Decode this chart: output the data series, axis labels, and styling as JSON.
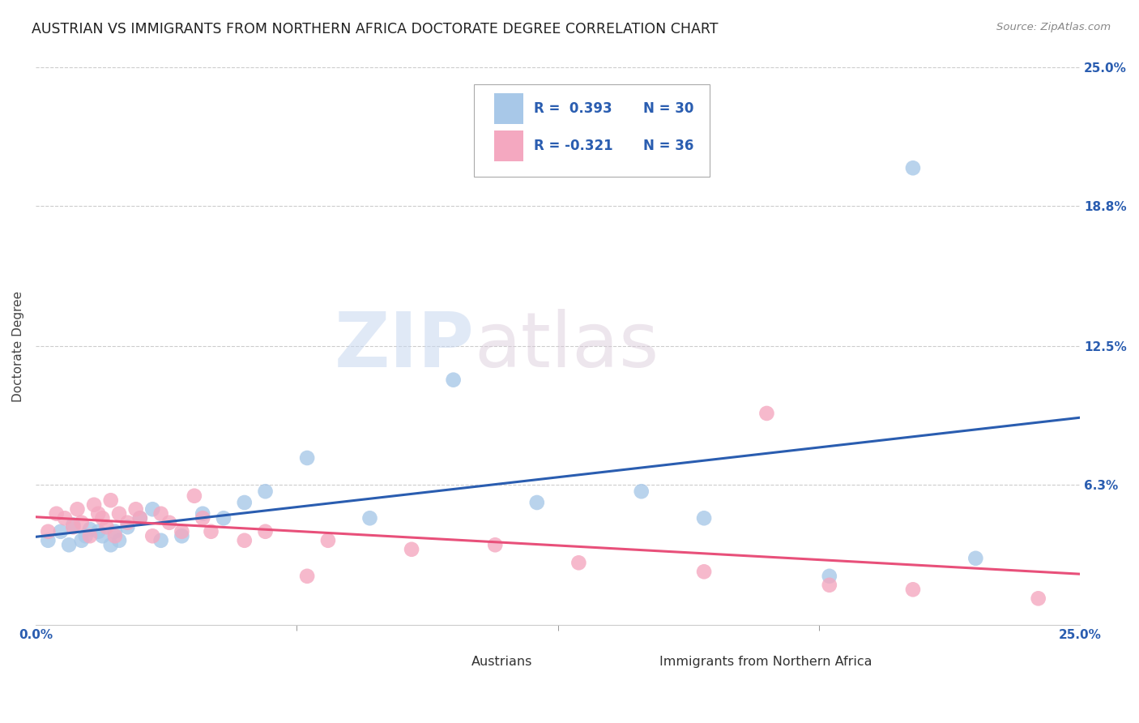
{
  "title": "AUSTRIAN VS IMMIGRANTS FROM NORTHERN AFRICA DOCTORATE DEGREE CORRELATION CHART",
  "source": "Source: ZipAtlas.com",
  "ylabel": "Doctorate Degree",
  "xlim": [
    0.0,
    0.25
  ],
  "ylim": [
    0.0,
    0.25
  ],
  "ytick_labels": [
    "6.3%",
    "12.5%",
    "18.8%",
    "25.0%"
  ],
  "ytick_vals": [
    0.063,
    0.125,
    0.188,
    0.25
  ],
  "blue_color": "#a8c8e8",
  "pink_color": "#f4a8c0",
  "blue_line_color": "#2a5db0",
  "pink_line_color": "#e8507a",
  "legend_R_blue": "R =  0.393",
  "legend_N_blue": "N = 30",
  "legend_R_pink": "R = -0.321",
  "legend_N_pink": "N = 36",
  "watermark_zip": "ZIP",
  "watermark_atlas": "atlas",
  "title_fontsize": 12.5,
  "axis_label_fontsize": 11,
  "tick_fontsize": 11,
  "legend_fontsize": 12,
  "blue_scatter_x": [
    0.003,
    0.006,
    0.008,
    0.009,
    0.011,
    0.012,
    0.013,
    0.015,
    0.016,
    0.018,
    0.019,
    0.02,
    0.022,
    0.025,
    0.028,
    0.03,
    0.035,
    0.04,
    0.045,
    0.05,
    0.055,
    0.065,
    0.08,
    0.1,
    0.12,
    0.145,
    0.16,
    0.19,
    0.21,
    0.225
  ],
  "blue_scatter_y": [
    0.038,
    0.042,
    0.036,
    0.045,
    0.038,
    0.04,
    0.043,
    0.042,
    0.04,
    0.036,
    0.042,
    0.038,
    0.044,
    0.048,
    0.052,
    0.038,
    0.04,
    0.05,
    0.048,
    0.055,
    0.06,
    0.075,
    0.048,
    0.11,
    0.055,
    0.06,
    0.048,
    0.022,
    0.205,
    0.03
  ],
  "pink_scatter_x": [
    0.003,
    0.005,
    0.007,
    0.009,
    0.01,
    0.011,
    0.013,
    0.014,
    0.015,
    0.016,
    0.017,
    0.018,
    0.019,
    0.02,
    0.022,
    0.024,
    0.025,
    0.028,
    0.03,
    0.032,
    0.035,
    0.038,
    0.04,
    0.042,
    0.05,
    0.055,
    0.065,
    0.07,
    0.09,
    0.11,
    0.13,
    0.16,
    0.175,
    0.19,
    0.21,
    0.24
  ],
  "pink_scatter_y": [
    0.042,
    0.05,
    0.048,
    0.044,
    0.052,
    0.046,
    0.04,
    0.054,
    0.05,
    0.048,
    0.044,
    0.056,
    0.04,
    0.05,
    0.046,
    0.052,
    0.048,
    0.04,
    0.05,
    0.046,
    0.042,
    0.058,
    0.048,
    0.042,
    0.038,
    0.042,
    0.022,
    0.038,
    0.034,
    0.036,
    0.028,
    0.024,
    0.095,
    0.018,
    0.016,
    0.012
  ]
}
